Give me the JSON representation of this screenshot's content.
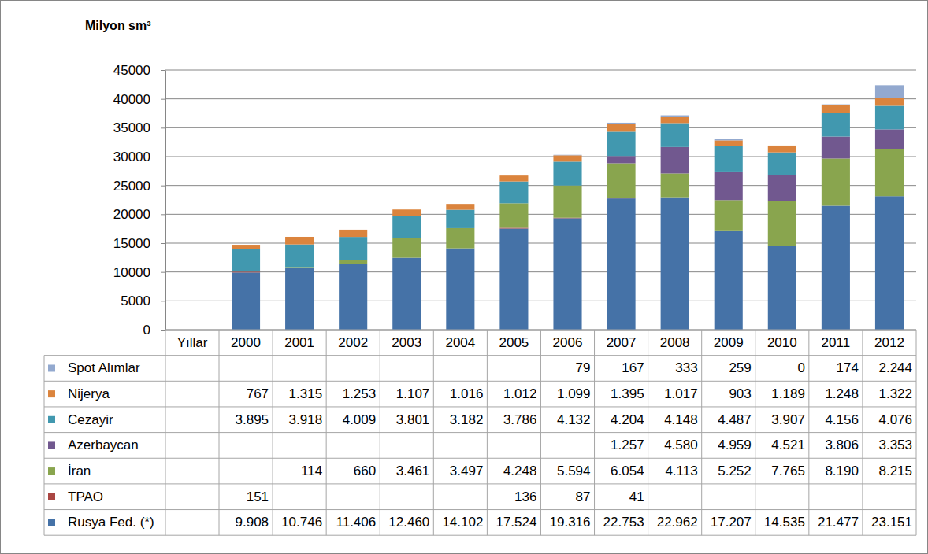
{
  "chart_data": {
    "type": "bar",
    "stacked": true,
    "grid": true,
    "data_labels": true,
    "y_label": "Milyon sm³",
    "x_label": "Yıllar",
    "categories": [
      "2000",
      "2001",
      "2002",
      "2003",
      "2004",
      "2005",
      "2006",
      "2007",
      "2008",
      "2009",
      "2010",
      "2011",
      "2012"
    ],
    "ylim": [
      0,
      45000
    ],
    "yticks": [
      0,
      5000,
      10000,
      15000,
      20000,
      25000,
      30000,
      35000,
      40000,
      45000
    ],
    "series": [
      {
        "name": "Rusya Fed. (*)",
        "color": "#4572A7",
        "values": [
          9908,
          10746,
          11406,
          12460,
          14102,
          17524,
          19316,
          22753,
          22962,
          17207,
          14535,
          21477,
          23151
        ],
        "value_labels": [
          "9.908",
          "10.746",
          "11.406",
          "12.460",
          "14.102",
          "17.524",
          "19.316",
          "22.753",
          "22.962",
          "17.207",
          "14.535",
          "21.477",
          "23.151"
        ]
      },
      {
        "name": "TPAO",
        "color": "#AA4643",
        "values": [
          151,
          null,
          null,
          null,
          null,
          136,
          87,
          41,
          null,
          null,
          null,
          null,
          null
        ],
        "value_labels": [
          "151",
          null,
          null,
          null,
          null,
          "136",
          "87",
          "41",
          null,
          null,
          null,
          null,
          null
        ]
      },
      {
        "name": "İran",
        "color": "#89A54E",
        "values": [
          null,
          114,
          660,
          3461,
          3497,
          4248,
          5594,
          6054,
          4113,
          5252,
          7765,
          8190,
          8215
        ],
        "value_labels": [
          null,
          "114",
          "660",
          "3.461",
          "3.497",
          "4.248",
          "5.594",
          "6.054",
          "4.113",
          "5.252",
          "7.765",
          "8.190",
          "8.215"
        ]
      },
      {
        "name": "Azerbaycan",
        "color": "#71588F",
        "values": [
          null,
          null,
          null,
          null,
          null,
          null,
          null,
          1257,
          4580,
          4959,
          4521,
          3806,
          3353
        ],
        "value_labels": [
          null,
          null,
          null,
          null,
          null,
          null,
          null,
          "1.257",
          "4.580",
          "4.959",
          "4.521",
          "3.806",
          "3.353"
        ]
      },
      {
        "name": "Cezayir",
        "color": "#4198AF",
        "values": [
          3895,
          3918,
          4009,
          3801,
          3182,
          3786,
          4132,
          4204,
          4148,
          4487,
          3907,
          4156,
          4076
        ],
        "value_labels": [
          "3.895",
          "3.918",
          "4.009",
          "3.801",
          "3.182",
          "3.786",
          "4.132",
          "4.204",
          "4.148",
          "4.487",
          "3.907",
          "4.156",
          "4.076"
        ]
      },
      {
        "name": "Nijerya",
        "color": "#DB843D",
        "values": [
          767,
          1315,
          1253,
          1107,
          1016,
          1012,
          1099,
          1395,
          1017,
          903,
          1189,
          1248,
          1322
        ],
        "value_labels": [
          "767",
          "1.315",
          "1.253",
          "1.107",
          "1.016",
          "1.012",
          "1.099",
          "1.395",
          "1.017",
          "903",
          "1.189",
          "1.248",
          "1.322"
        ]
      },
      {
        "name": "Spot Alımlar",
        "color": "#93A9CF",
        "values": [
          null,
          null,
          null,
          null,
          null,
          null,
          79,
          167,
          333,
          259,
          0,
          174,
          2244
        ],
        "value_labels": [
          null,
          null,
          null,
          null,
          null,
          null,
          "79",
          "167",
          "333",
          "259",
          "0",
          "174",
          "2.244"
        ]
      }
    ]
  }
}
